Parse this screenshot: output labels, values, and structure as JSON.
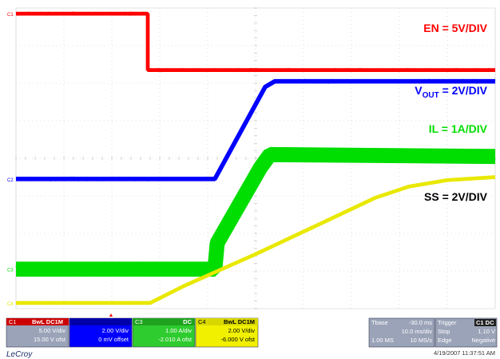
{
  "chart_data": {
    "type": "line",
    "title": "",
    "xlabel": "",
    "ylabel": "",
    "xlim": [
      -30,
      70
    ],
    "ylim": [
      -4,
      4
    ],
    "grid": true,
    "divisions": {
      "x": 10,
      "y": 8
    },
    "series": [
      {
        "name": "EN",
        "color": "#ff0000",
        "noise": 0.05,
        "points": [
          [
            -30,
            3.85
          ],
          [
            -2.5,
            3.85
          ],
          [
            -2.5,
            2.35
          ],
          [
            70,
            2.35
          ]
        ]
      },
      {
        "name": "VOUT",
        "color": "#0000ff",
        "noise": 0.06,
        "points": [
          [
            -30,
            -0.55
          ],
          [
            11.5,
            -0.55
          ],
          [
            22,
            1.9
          ],
          [
            24,
            2.05
          ],
          [
            70,
            2.05
          ]
        ]
      },
      {
        "name": "IL",
        "color": "#00dd00",
        "noise": 0.2,
        "points": [
          [
            -30,
            -2.95
          ],
          [
            11.5,
            -2.95
          ],
          [
            12,
            -2.25
          ],
          [
            21,
            -0.25
          ],
          [
            23,
            0.1
          ],
          [
            70,
            0.05
          ]
        ]
      },
      {
        "name": "SS",
        "color": "#e8e800",
        "noise": 0.05,
        "points": [
          [
            -30,
            -3.85
          ],
          [
            -2,
            -3.85
          ],
          [
            5,
            -3.4
          ],
          [
            20,
            -2.55
          ],
          [
            35,
            -1.65
          ],
          [
            45,
            -1.05
          ],
          [
            52,
            -0.75
          ],
          [
            60,
            -0.58
          ],
          [
            70,
            -0.5
          ]
        ]
      }
    ],
    "annotations": {
      "en": "EN = 5V/DIV",
      "vout_main": "V",
      "vout_sub": "OUT",
      "vout_rest": " = 2V/DIV",
      "il": "IL = 1A/DIV",
      "ss": "SS = 2V/DIV"
    },
    "channel_markers": [
      "C1",
      "C2",
      "C3",
      "C4"
    ]
  },
  "info_bar": {
    "c1": {
      "id": "C1",
      "tag": "BwL DC1M",
      "scale": "5.00 V/div",
      "offset": "15.00 V ofst"
    },
    "c2": {
      "scale": "2.00 V/div",
      "offset": "0 mV offset"
    },
    "c3": {
      "id": "C3",
      "tag": "DC",
      "scale": "1.00 A/div",
      "offset": "-2.010 A ofst"
    },
    "c4": {
      "id": "C4",
      "tag": "BwL DC1M",
      "scale": "2.00 V/div",
      "offset": "-6.000 V ofst"
    },
    "timebase": {
      "label": "Tbase",
      "delay": "-30.0 ms",
      "rate": "10.0 ms/div",
      "samples": "1.00 MS",
      "srate": "10 MS/s"
    },
    "trigger": {
      "label": "Trigger",
      "source": "C1 DC",
      "mode": "Stop",
      "level": "1.10 V",
      "type": "Edge",
      "slope": "Negative"
    }
  },
  "brand": "LeCroy",
  "timestamp": "4/19/2007 11:37:51 AM",
  "colors": {
    "c1": "#ff0000",
    "c2": "#0000ff",
    "c3": "#00dd00",
    "c4": "#e8e800",
    "panel": "#9aa3b8"
  }
}
